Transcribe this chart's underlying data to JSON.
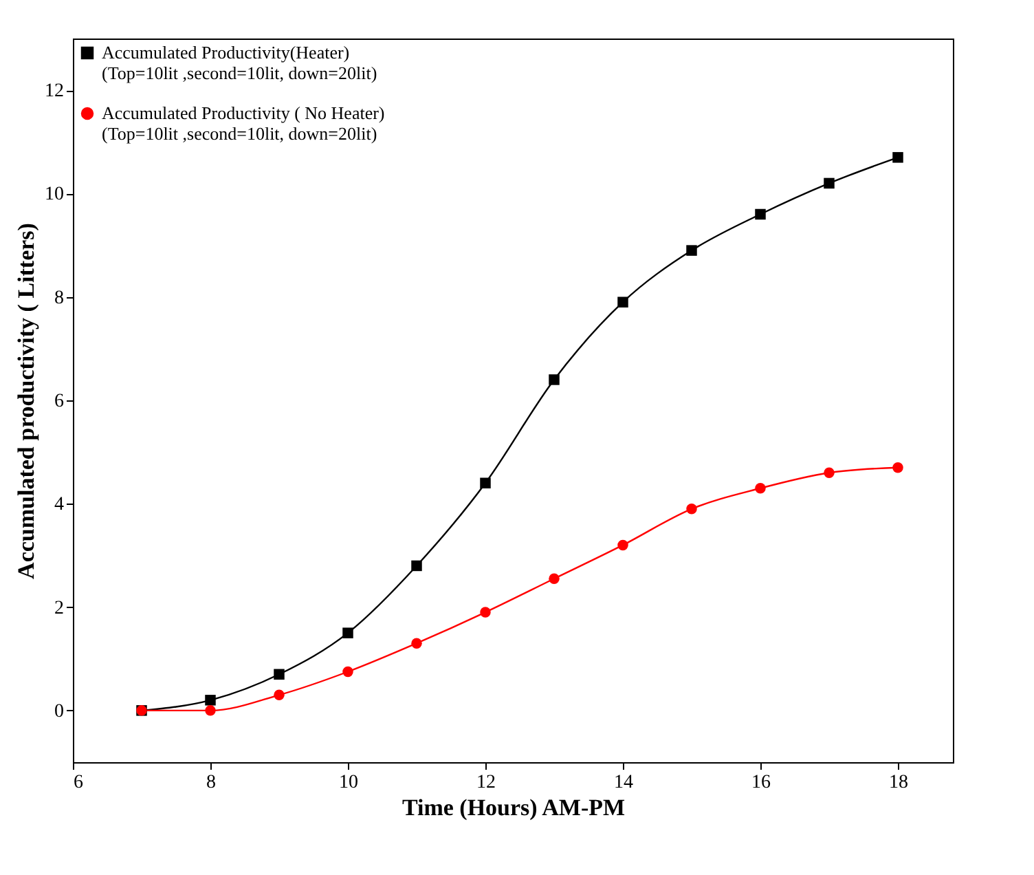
{
  "chart_data": {
    "type": "line",
    "xlabel": "Time (Hours) AM-PM",
    "ylabel": "Accumulated productivity ( Litters)",
    "x": [
      7,
      8,
      9,
      10,
      11,
      12,
      13,
      14,
      15,
      16,
      17,
      18
    ],
    "series": [
      {
        "name": "Accumulated Productivity(Heater)\n(Top=10lit ,second=10lit, down=20lit)",
        "color": "#000000",
        "marker": "square",
        "values": [
          0,
          0.2,
          0.7,
          1.5,
          2.8,
          4.4,
          6.4,
          7.9,
          8.9,
          9.6,
          10.2,
          10.7
        ]
      },
      {
        "name": "Accumulated Productivity ( No Heater)\n(Top=10lit ,second=10lit, down=20lit)",
        "color": "#ff0000",
        "marker": "circle",
        "values": [
          0,
          0,
          0.3,
          0.75,
          1.3,
          1.9,
          2.55,
          3.2,
          3.9,
          4.3,
          4.6,
          4.7
        ]
      }
    ],
    "xlim": [
      6,
      18.8
    ],
    "ylim": [
      -1,
      13
    ],
    "xticks": [
      6,
      8,
      10,
      12,
      14,
      16,
      18
    ],
    "yticks": [
      0,
      2,
      4,
      6,
      8,
      10,
      12
    ],
    "grid": false,
    "legend": "top left",
    "line_style": "solid"
  }
}
